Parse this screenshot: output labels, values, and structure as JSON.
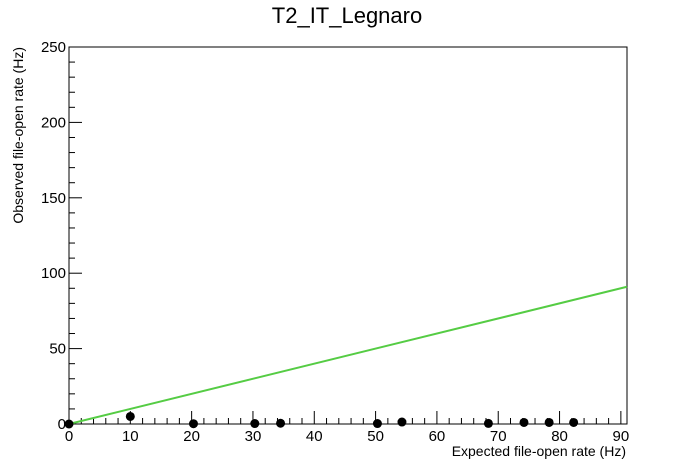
{
  "chart_data": {
    "type": "scatter",
    "title": "T2_IT_Legnaro",
    "xlabel": "Expected file-open rate (Hz)",
    "ylabel": "Observed file-open rate (Hz)",
    "xlim": [
      0,
      91
    ],
    "ylim": [
      0,
      250
    ],
    "x_ticks": [
      0,
      10,
      20,
      30,
      40,
      50,
      60,
      70,
      80,
      90
    ],
    "y_ticks": [
      0,
      50,
      100,
      150,
      200,
      250
    ],
    "grid": false,
    "series": [
      {
        "type": "scatter",
        "color": "#000000",
        "points": [
          {
            "x": 0,
            "y": 0
          },
          {
            "x": 10,
            "y": 5
          },
          {
            "x": 20.3,
            "y": 0.2
          },
          {
            "x": 30.3,
            "y": 0.3
          },
          {
            "x": 34.5,
            "y": 0.5
          },
          {
            "x": 50.3,
            "y": 0.3
          },
          {
            "x": 54.3,
            "y": 1.3
          },
          {
            "x": 68.4,
            "y": 0.4
          },
          {
            "x": 74.2,
            "y": 1.0
          },
          {
            "x": 78.3,
            "y": 1.0
          },
          {
            "x": 82.3,
            "y": 1.0
          }
        ]
      },
      {
        "type": "line",
        "color": "#55cc44",
        "points": [
          {
            "x": 0,
            "y": 0
          },
          {
            "x": 91,
            "y": 91
          }
        ]
      }
    ]
  }
}
